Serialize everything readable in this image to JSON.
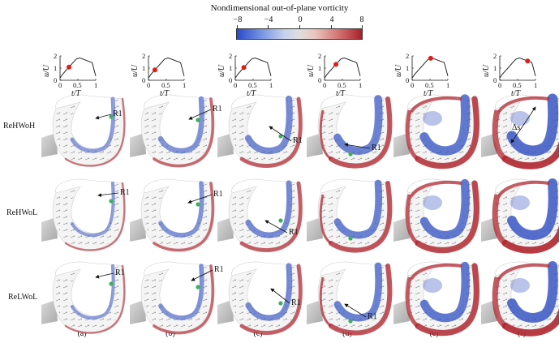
{
  "colorbar": {
    "title": "Nondimensional out-of-plane vorticity",
    "ticks": [
      "−8",
      "−4",
      "0",
      "4",
      "8"
    ]
  },
  "inset": {
    "ylabel": "u/U",
    "xlabel": "t/T",
    "yticks": [
      "2",
      "1",
      "0"
    ],
    "xticks": [
      "0",
      "0.5",
      "1"
    ],
    "marker_times": [
      0.25,
      0.18,
      0.24,
      0.32,
      0.52,
      0.78
    ]
  },
  "rows": [
    "ReHWoH",
    "ReHWoL",
    "ReLWoL"
  ],
  "columns": [
    "(a)",
    "(b)",
    "(c)",
    "(d)",
    "(e)",
    "(f)"
  ],
  "annotations": {
    "r1": "R1",
    "delta_s": "Δs"
  },
  "colors": {
    "vortex_negative": "#3856c4",
    "vortex_positive": "#b0262f",
    "marker": "#e21b1b",
    "core": "#3fae5b"
  }
}
